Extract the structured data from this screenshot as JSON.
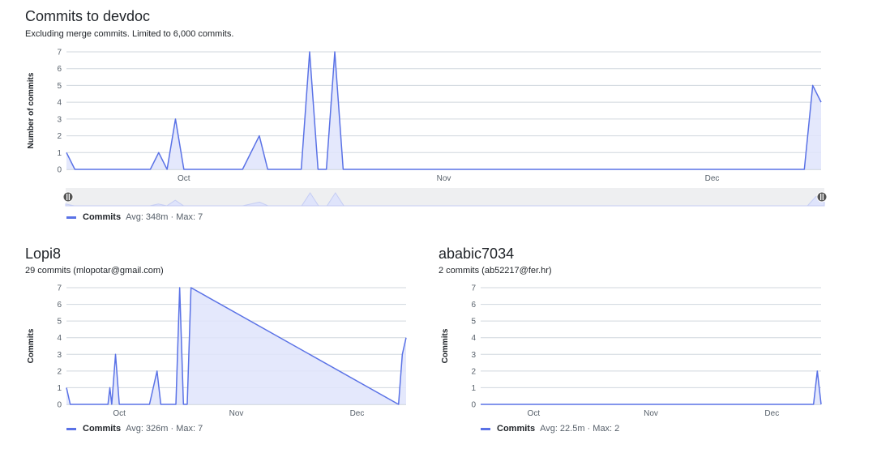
{
  "repo_section": {
    "title": "Commits to devdoc",
    "subtitle": "Excluding merge commits. Limited to 6,000 commits.",
    "legend": {
      "name": "Commits",
      "stats": "Avg: 348m · Max: 7"
    }
  },
  "contributors": [
    {
      "name": "Lopi8",
      "subtitle": "29 commits (mlopotar@gmail.com)",
      "legend": {
        "name": "Commits",
        "stats": "Avg: 326m · Max: 7"
      }
    },
    {
      "name": "ababic7034",
      "subtitle": "2 commits (ab52217@fer.hr)",
      "legend": {
        "name": "Commits",
        "stats": "Avg: 22.5m · Max: 2"
      }
    }
  ],
  "colors": {
    "line": "#5a72e6",
    "fill": "#dfe4fb",
    "grid": "#d0d7de"
  },
  "chart_data": [
    {
      "type": "area",
      "ylabel": "Number of commits",
      "ylim": [
        0,
        7
      ],
      "xlim": [
        0,
        90
      ],
      "grid": true,
      "yticks": [
        0,
        1,
        2,
        3,
        4,
        5,
        6,
        7
      ],
      "xticks": [
        {
          "x": 14,
          "label": "Oct"
        },
        {
          "x": 45,
          "label": "Nov"
        },
        {
          "x": 77,
          "label": "Dec"
        }
      ],
      "series": [
        {
          "name": "Commits",
          "x": [
            0,
            1,
            10,
            11,
            12,
            13,
            14,
            15,
            21,
            23,
            24,
            28,
            29,
            30,
            31,
            32,
            33,
            34,
            88,
            89,
            90
          ],
          "y": [
            1,
            0,
            0,
            1,
            0,
            3,
            0,
            0,
            0,
            2,
            0,
            0,
            7,
            0,
            0,
            7,
            0,
            0,
            0,
            5,
            4
          ]
        }
      ]
    },
    {
      "type": "area",
      "ylabel": "Commits",
      "ylim": [
        0,
        7
      ],
      "xlim": [
        0,
        90
      ],
      "grid": true,
      "yticks": [
        0,
        1,
        2,
        3,
        4,
        5,
        6,
        7
      ],
      "xticks": [
        {
          "x": 14,
          "label": "Oct"
        },
        {
          "x": 45,
          "label": "Nov"
        },
        {
          "x": 77,
          "label": "Dec"
        }
      ],
      "series": [
        {
          "name": "Commits",
          "x": [
            0,
            1,
            11,
            11.5,
            12,
            13,
            14,
            22,
            24,
            25,
            29,
            30,
            31,
            32,
            33,
            88,
            89,
            90
          ],
          "y": [
            1,
            0,
            0,
            1,
            0,
            3,
            0,
            0,
            2,
            0,
            0,
            7,
            0,
            0,
            7,
            0,
            3,
            4
          ]
        }
      ]
    },
    {
      "type": "area",
      "ylabel": "Commits",
      "ylim": [
        0,
        7
      ],
      "xlim": [
        0,
        90
      ],
      "grid": true,
      "yticks": [
        0,
        1,
        2,
        3,
        4,
        5,
        6,
        7
      ],
      "xticks": [
        {
          "x": 14,
          "label": "Oct"
        },
        {
          "x": 45,
          "label": "Nov"
        },
        {
          "x": 77,
          "label": "Dec"
        }
      ],
      "series": [
        {
          "name": "Commits",
          "x": [
            0,
            88,
            89,
            90
          ],
          "y": [
            0,
            0,
            2,
            0
          ]
        }
      ]
    }
  ]
}
